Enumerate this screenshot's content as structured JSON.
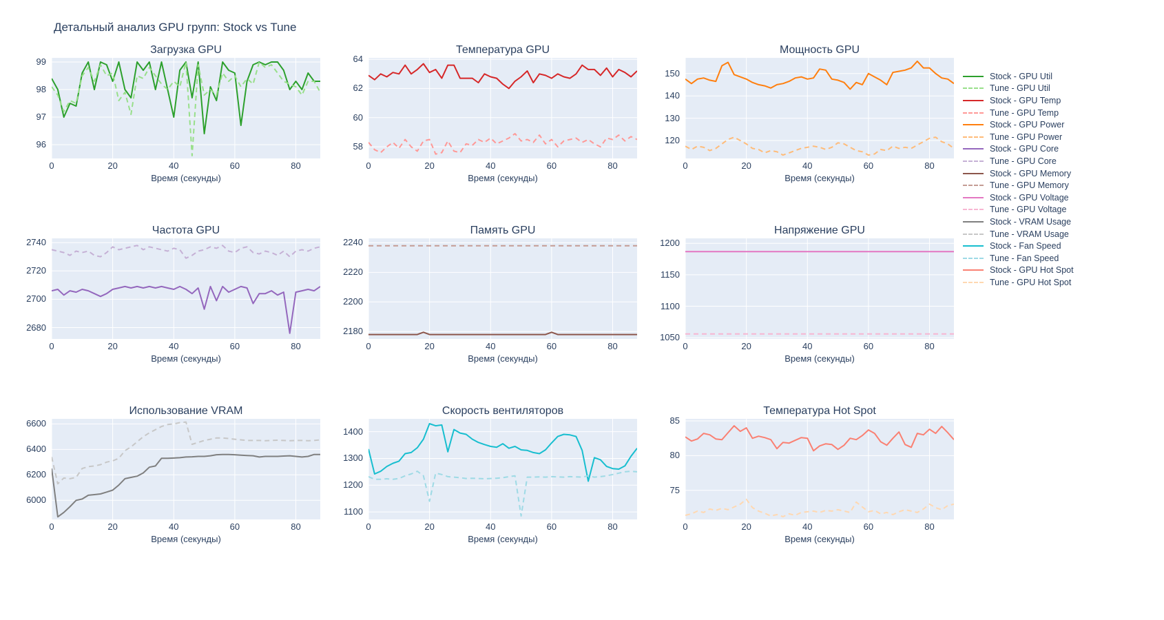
{
  "page_title": "Детальный анализ GPU групп: Stock vs Tune",
  "theme": {
    "paper_color": "#ffffff",
    "plot_bg_color": "#e5ecf6",
    "grid_color": "#ffffff",
    "text_color": "#2a3f5f"
  },
  "chart_data": [
    {
      "type": "line",
      "title": "Загрузка GPU",
      "xlabel": "Время (секунды)",
      "xlim": [
        0,
        88
      ],
      "xticks": [
        0,
        20,
        40,
        60,
        80
      ],
      "ylim": [
        95.5,
        99.15
      ],
      "yticks": [
        96,
        97,
        98,
        99
      ],
      "x_step": 2,
      "grid": true,
      "series": [
        {
          "name": "Stock - GPU Util",
          "color": "#2ca02c",
          "dash": false,
          "values": [
            98.4,
            98.0,
            97.0,
            97.5,
            97.4,
            98.6,
            99.0,
            98.0,
            99.0,
            98.9,
            98.3,
            99.0,
            98.0,
            97.7,
            99.0,
            98.7,
            99.0,
            98.0,
            99.0,
            98.0,
            97.0,
            98.7,
            99.0,
            97.7,
            99.0,
            96.4,
            98.1,
            97.6,
            99.0,
            98.7,
            98.6,
            96.7,
            98.3,
            98.9,
            99.0,
            98.9,
            99.0,
            99.0,
            98.7,
            98.0,
            98.3,
            98.0,
            98.6,
            98.3,
            98.3
          ]
        },
        {
          "name": "Tune - GPU Util",
          "color": "#98df8a",
          "dash": true,
          "values": [
            98.1,
            97.8,
            97.2,
            97.6,
            97.5,
            98.5,
            98.8,
            98.3,
            98.9,
            98.5,
            98.6,
            97.6,
            97.9,
            97.1,
            98.5,
            98.4,
            98.8,
            98.5,
            98.2,
            98.0,
            98.3,
            98.1,
            99.0,
            95.6,
            98.9,
            97.8,
            98.0,
            97.8,
            98.6,
            98.3,
            98.5,
            98.1,
            98.4,
            98.2,
            99.0,
            98.8,
            98.9,
            98.6,
            98.3,
            98.2,
            98.1,
            97.8,
            98.3,
            98.3,
            97.9
          ]
        }
      ]
    },
    {
      "type": "line",
      "title": "Температура GPU",
      "xlabel": "Время (секунды)",
      "xlim": [
        0,
        88
      ],
      "xticks": [
        0,
        20,
        40,
        60,
        80
      ],
      "ylim": [
        57.2,
        64.1
      ],
      "yticks": [
        58,
        60,
        62,
        64
      ],
      "x_step": 2,
      "grid": true,
      "series": [
        {
          "name": "Stock - GPU Temp",
          "color": "#d62728",
          "dash": false,
          "values": [
            62.9,
            62.6,
            63.0,
            62.8,
            63.1,
            63.0,
            63.6,
            63.0,
            63.3,
            63.7,
            63.1,
            63.3,
            62.7,
            63.6,
            63.6,
            62.7,
            62.7,
            62.7,
            62.4,
            63.0,
            62.8,
            62.7,
            62.3,
            62.0,
            62.5,
            62.8,
            63.2,
            62.4,
            63.0,
            62.9,
            62.7,
            63.0,
            62.8,
            62.7,
            63.0,
            63.6,
            63.3,
            63.3,
            62.9,
            63.4,
            62.8,
            63.3,
            63.1,
            62.8,
            63.2
          ]
        },
        {
          "name": "Tune - GPU Temp",
          "color": "#ff9896",
          "dash": true,
          "values": [
            58.3,
            57.8,
            57.6,
            58.0,
            58.3,
            57.9,
            58.5,
            58.0,
            57.7,
            58.4,
            58.5,
            57.5,
            57.6,
            58.4,
            57.7,
            57.6,
            58.2,
            58.1,
            58.5,
            58.3,
            58.6,
            58.2,
            58.4,
            58.6,
            58.9,
            58.4,
            58.5,
            58.3,
            58.8,
            58.2,
            58.5,
            58.0,
            58.4,
            58.5,
            58.6,
            58.3,
            58.5,
            58.2,
            58.0,
            58.6,
            58.5,
            58.8,
            58.4,
            58.7,
            58.5
          ]
        }
      ]
    },
    {
      "type": "line",
      "title": "Мощность GPU",
      "xlabel": "Время (секунды)",
      "xlim": [
        0,
        88
      ],
      "xticks": [
        0,
        20,
        40,
        60,
        80
      ],
      "ylim": [
        112,
        157
      ],
      "yticks": [
        120,
        130,
        140,
        150
      ],
      "x_step": 2,
      "grid": true,
      "series": [
        {
          "name": "Stock - GPU Power",
          "color": "#ff7f0e",
          "dash": false,
          "values": [
            147.5,
            145.5,
            147.5,
            148.0,
            147.0,
            146.5,
            153.5,
            155.0,
            149.5,
            148.5,
            147.5,
            146.0,
            145.0,
            144.5,
            143.5,
            145.0,
            145.5,
            146.5,
            148.0,
            148.5,
            147.5,
            148.0,
            152.0,
            151.5,
            147.5,
            147.0,
            146.0,
            143.0,
            146.0,
            145.0,
            150.0,
            148.5,
            147.0,
            145.0,
            150.5,
            151.0,
            151.5,
            152.5,
            155.5,
            152.5,
            152.5,
            150.0,
            148.0,
            147.5,
            145.5
          ]
        },
        {
          "name": "Tune - GPU Power",
          "color": "#ffbb78",
          "dash": true,
          "values": [
            117.5,
            116.0,
            117.5,
            117.0,
            115.5,
            116.5,
            118.5,
            120.5,
            121.5,
            120.0,
            118.5,
            116.5,
            116.0,
            114.5,
            115.5,
            115.0,
            113.5,
            114.5,
            115.5,
            116.5,
            117.0,
            117.5,
            117.0,
            116.0,
            117.0,
            119.0,
            118.5,
            117.0,
            115.5,
            115.0,
            113.5,
            114.0,
            116.0,
            115.5,
            117.5,
            116.5,
            117.0,
            116.5,
            118.0,
            119.5,
            121.0,
            121.5,
            119.5,
            118.5,
            116.5
          ]
        }
      ]
    },
    {
      "type": "line",
      "title": "Частота GPU",
      "xlabel": "Время (секунды)",
      "xlim": [
        0,
        88
      ],
      "xticks": [
        0,
        20,
        40,
        60,
        80
      ],
      "ylim": [
        2672,
        2743
      ],
      "yticks": [
        2680,
        2700,
        2720,
        2740
      ],
      "x_step": 2,
      "grid": true,
      "series": [
        {
          "name": "Stock - GPU Core",
          "color": "#9467bd",
          "dash": false,
          "values": [
            2706,
            2707,
            2703,
            2706,
            2705,
            2707,
            2706,
            2704,
            2702,
            2704,
            2707,
            2708,
            2709,
            2708,
            2709,
            2708,
            2709,
            2708,
            2709,
            2708,
            2707,
            2709,
            2707,
            2704,
            2708,
            2693,
            2709,
            2699,
            2709,
            2705,
            2707,
            2709,
            2708,
            2697,
            2704,
            2704,
            2706,
            2703,
            2705,
            2676,
            2705,
            2706,
            2707,
            2706,
            2709
          ]
        },
        {
          "name": "Tune - GPU Core",
          "color": "#c5b0d5",
          "dash": true,
          "values": [
            2735,
            2734,
            2733,
            2731,
            2734,
            2733,
            2734,
            2731,
            2730,
            2733,
            2737,
            2735,
            2736,
            2737,
            2738,
            2735,
            2737,
            2736,
            2735,
            2734,
            2736,
            2735,
            2729,
            2731,
            2734,
            2735,
            2737,
            2736,
            2738,
            2734,
            2733,
            2736,
            2737,
            2733,
            2732,
            2734,
            2733,
            2731,
            2734,
            2730,
            2734,
            2735,
            2734,
            2736,
            2737
          ]
        }
      ]
    },
    {
      "type": "line",
      "title": "Память GPU",
      "xlabel": "Время (секунды)",
      "xlim": [
        0,
        88
      ],
      "xticks": [
        0,
        20,
        40,
        60,
        80
      ],
      "ylim": [
        2175,
        2243
      ],
      "yticks": [
        2180,
        2200,
        2220,
        2240
      ],
      "x_step": 2,
      "grid": true,
      "series": [
        {
          "name": "Stock - GPU Memory",
          "color": "#8c564b",
          "dash": false,
          "values": [
            2178,
            2178,
            2178,
            2178,
            2178,
            2178,
            2178,
            2178,
            2178,
            2179.5,
            2178,
            2178,
            2178,
            2178,
            2178,
            2178,
            2178,
            2178,
            2178,
            2178,
            2178,
            2178,
            2178,
            2178,
            2178,
            2178,
            2178,
            2178,
            2178,
            2178,
            2179.5,
            2178,
            2178,
            2178,
            2178,
            2178,
            2178,
            2178,
            2178,
            2178,
            2178,
            2178,
            2178,
            2178,
            2178
          ]
        },
        {
          "name": "Tune - GPU Memory",
          "color": "#c49c94",
          "dash": true,
          "x_step": 88,
          "values": [
            2238,
            2238
          ]
        }
      ]
    },
    {
      "type": "line",
      "title": "Напряжение GPU",
      "xlabel": "Время (секунды)",
      "xlim": [
        0,
        88
      ],
      "xticks": [
        0,
        20,
        40,
        60,
        80
      ],
      "ylim": [
        1048,
        1208
      ],
      "yticks": [
        1050,
        1100,
        1150,
        1200
      ],
      "x_step": 2,
      "grid": true,
      "series": [
        {
          "name": "Stock - GPU Voltage",
          "color": "#e377c2",
          "dash": false,
          "x_step": 88,
          "values": [
            1187,
            1187
          ]
        },
        {
          "name": "Tune - GPU Voltage",
          "color": "#f7b6d2",
          "dash": true,
          "x_step": 88,
          "values": [
            1056,
            1056
          ]
        }
      ]
    },
    {
      "type": "line",
      "title": "Использование VRAM",
      "xlabel": "Время (секунды)",
      "xlim": [
        0,
        88
      ],
      "xticks": [
        0,
        20,
        40,
        60,
        80
      ],
      "ylim": [
        5850,
        6640
      ],
      "yticks": [
        6000,
        6200,
        6400,
        6600
      ],
      "x_step": 2,
      "grid": true,
      "series": [
        {
          "name": "Stock - VRAM Usage",
          "color": "#7f7f7f",
          "dash": false,
          "values": [
            6250,
            5870,
            5905,
            5950,
            6000,
            6010,
            6040,
            6045,
            6050,
            6065,
            6080,
            6120,
            6170,
            6180,
            6190,
            6215,
            6260,
            6270,
            6330,
            6330,
            6332,
            6335,
            6340,
            6342,
            6345,
            6345,
            6350,
            6358,
            6360,
            6360,
            6358,
            6355,
            6352,
            6350,
            6340,
            6345,
            6345,
            6345,
            6348,
            6350,
            6345,
            6340,
            6345,
            6360,
            6360
          ]
        },
        {
          "name": "Tune - VRAM Usage",
          "color": "#c7c7c7",
          "dash": true,
          "values": [
            6340,
            6130,
            6175,
            6170,
            6180,
            6250,
            6265,
            6270,
            6280,
            6300,
            6310,
            6330,
            6390,
            6420,
            6460,
            6500,
            6530,
            6555,
            6580,
            6595,
            6600,
            6610,
            6615,
            6440,
            6455,
            6470,
            6480,
            6490,
            6490,
            6485,
            6480,
            6475,
            6470,
            6470,
            6470,
            6468,
            6470,
            6472,
            6470,
            6468,
            6470,
            6470,
            6468,
            6470,
            6475
          ]
        }
      ]
    },
    {
      "type": "line",
      "title": "Скорость вентиляторов",
      "xlabel": "Время (секунды)",
      "xlim": [
        0,
        88
      ],
      "xticks": [
        0,
        20,
        40,
        60,
        80
      ],
      "ylim": [
        1072,
        1448
      ],
      "yticks": [
        1100,
        1200,
        1300,
        1400
      ],
      "x_step": 2,
      "grid": true,
      "series": [
        {
          "name": "Stock - Fan Speed",
          "color": "#17becf",
          "dash": false,
          "values": [
            1335,
            1242,
            1252,
            1270,
            1282,
            1290,
            1318,
            1322,
            1340,
            1372,
            1430,
            1422,
            1425,
            1325,
            1408,
            1395,
            1390,
            1372,
            1360,
            1352,
            1345,
            1342,
            1355,
            1338,
            1345,
            1332,
            1330,
            1322,
            1318,
            1332,
            1358,
            1382,
            1390,
            1388,
            1382,
            1330,
            1215,
            1303,
            1295,
            1270,
            1262,
            1260,
            1272,
            1308,
            1338
          ]
        },
        {
          "name": "Tune - Fan Speed",
          "color": "#9edae5",
          "dash": true,
          "values": [
            1232,
            1222,
            1222,
            1224,
            1222,
            1225,
            1235,
            1242,
            1252,
            1235,
            1140,
            1245,
            1240,
            1232,
            1230,
            1228,
            1225,
            1226,
            1225,
            1224,
            1225,
            1226,
            1228,
            1232,
            1235,
            1085,
            1230,
            1230,
            1231,
            1230,
            1232,
            1231,
            1230,
            1232,
            1231,
            1230,
            1235,
            1230,
            1232,
            1235,
            1240,
            1245,
            1250,
            1252,
            1250
          ]
        }
      ]
    },
    {
      "type": "line",
      "title": "Температура Hot Spot",
      "xlabel": "Время (секунды)",
      "xlim": [
        0,
        88
      ],
      "xticks": [
        0,
        20,
        40,
        60,
        80
      ],
      "ylim": [
        70.8,
        85.3
      ],
      "yticks": [
        75,
        80,
        85
      ],
      "x_step": 2,
      "grid": true,
      "series": [
        {
          "name": "Stock - GPU Hot Spot",
          "color": "#fa8072",
          "dash": false,
          "values": [
            82.7,
            82.1,
            82.4,
            83.2,
            83.0,
            82.4,
            82.3,
            83.3,
            84.3,
            83.5,
            84.0,
            82.5,
            82.8,
            82.6,
            82.3,
            81.0,
            81.9,
            81.8,
            82.2,
            82.6,
            82.5,
            80.7,
            81.4,
            81.7,
            81.6,
            80.9,
            81.5,
            82.5,
            82.3,
            82.9,
            83.7,
            83.2,
            82.0,
            81.5,
            82.5,
            83.4,
            81.6,
            81.2,
            83.2,
            83.0,
            83.8,
            83.2,
            84.2,
            83.3,
            82.3
          ]
        },
        {
          "name": "Tune - GPU Hot Spot",
          "color": "#ffd8b1",
          "dash": true,
          "values": [
            71.4,
            71.6,
            72.0,
            71.8,
            72.3,
            72.1,
            72.4,
            72.2,
            72.6,
            73.0,
            73.7,
            72.5,
            72.0,
            71.7,
            71.3,
            71.5,
            71.2,
            71.6,
            71.4,
            71.8,
            71.9,
            72.0,
            71.8,
            72.1,
            72.0,
            72.2,
            72.0,
            71.8,
            73.3,
            72.6,
            71.9,
            72.1,
            71.6,
            71.8,
            71.5,
            71.9,
            72.2,
            72.0,
            71.8,
            72.3,
            73.0,
            72.5,
            72.2,
            72.8,
            73.0
          ]
        }
      ]
    }
  ]
}
